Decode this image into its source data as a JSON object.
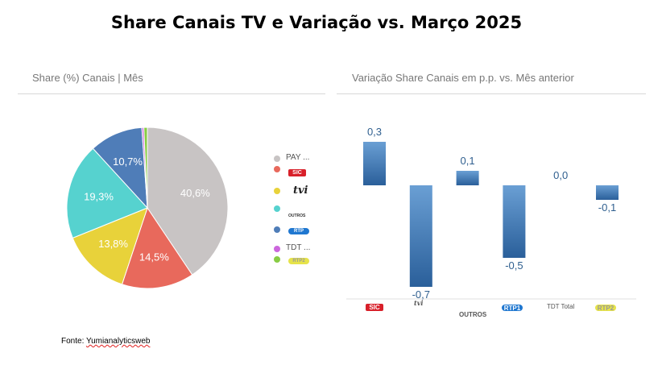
{
  "title": "Share Canais TV e Variação vs. Março 2025",
  "left_panel": {
    "title": "Share (%) Canais | Mês"
  },
  "right_panel": {
    "title": "Variação Share Canais em p.p. vs. Mês anterior"
  },
  "legend": {
    "items": [
      {
        "label": "PAY ...",
        "color": "#c8c4c4",
        "logo": ""
      },
      {
        "label": "",
        "color": "#e8695c",
        "logo": "SIC"
      },
      {
        "label": "",
        "color": "#e8d23a",
        "logo": "tvi"
      },
      {
        "label": "",
        "color": "#56d2cf",
        "logo": "OUTROS"
      },
      {
        "label": "",
        "color": "#4f7db8",
        "logo": "RTP"
      },
      {
        "label": "TDT ...",
        "color": "#cc66dd",
        "logo": ""
      },
      {
        "label": "",
        "color": "#88cc44",
        "logo": "RTP2"
      }
    ]
  },
  "x_axis_labels": {
    "sic": "SIC",
    "tvi": "tvi",
    "outros": "OUTROS",
    "rtp1": "RTP1",
    "tdt": "TDT Total",
    "rtp2": "RTP2"
  },
  "source": {
    "prefix": "Fonte: ",
    "name": "Yumianalyticsweb"
  },
  "chart_data": [
    {
      "type": "pie",
      "title": "Share (%) Canais | Mês",
      "slices": [
        {
          "name": "PAY TV",
          "value": 40.6,
          "label": "40,6%",
          "color": "#c8c4c4"
        },
        {
          "name": "SIC",
          "value": 14.5,
          "label": "14,5%",
          "color": "#e8695c"
        },
        {
          "name": "TVI",
          "value": 13.8,
          "label": "13,8%",
          "color": "#e8d23a"
        },
        {
          "name": "OUTROS",
          "value": 19.3,
          "label": "19,3%",
          "color": "#56d2cf"
        },
        {
          "name": "RTP1",
          "value": 10.7,
          "label": "10,7%",
          "color": "#4f7db8"
        },
        {
          "name": "TDT Total",
          "value": 0.4,
          "label": "",
          "color": "#cc66dd"
        },
        {
          "name": "RTP2",
          "value": 0.7,
          "label": "",
          "color": "#88cc44"
        }
      ],
      "legend": "right"
    },
    {
      "type": "bar",
      "title": "Variação Share Canais em p.p. vs. Mês anterior",
      "categories": [
        "SIC",
        "TVI",
        "OUTROS",
        "RTP1",
        "TDT Total",
        "RTP2"
      ],
      "values": [
        0.3,
        -0.7,
        0.1,
        -0.5,
        0.0,
        -0.1
      ],
      "data_labels": [
        "0,3",
        "-0,7",
        "0,1",
        "-0,5",
        "0,0",
        "-0,1"
      ],
      "ylim": [
        -0.7,
        0.3
      ],
      "grid": false,
      "color_top": "#6a9fd4",
      "color_bottom": "#2a5f9a",
      "label_color": "#2f5f8f"
    }
  ]
}
